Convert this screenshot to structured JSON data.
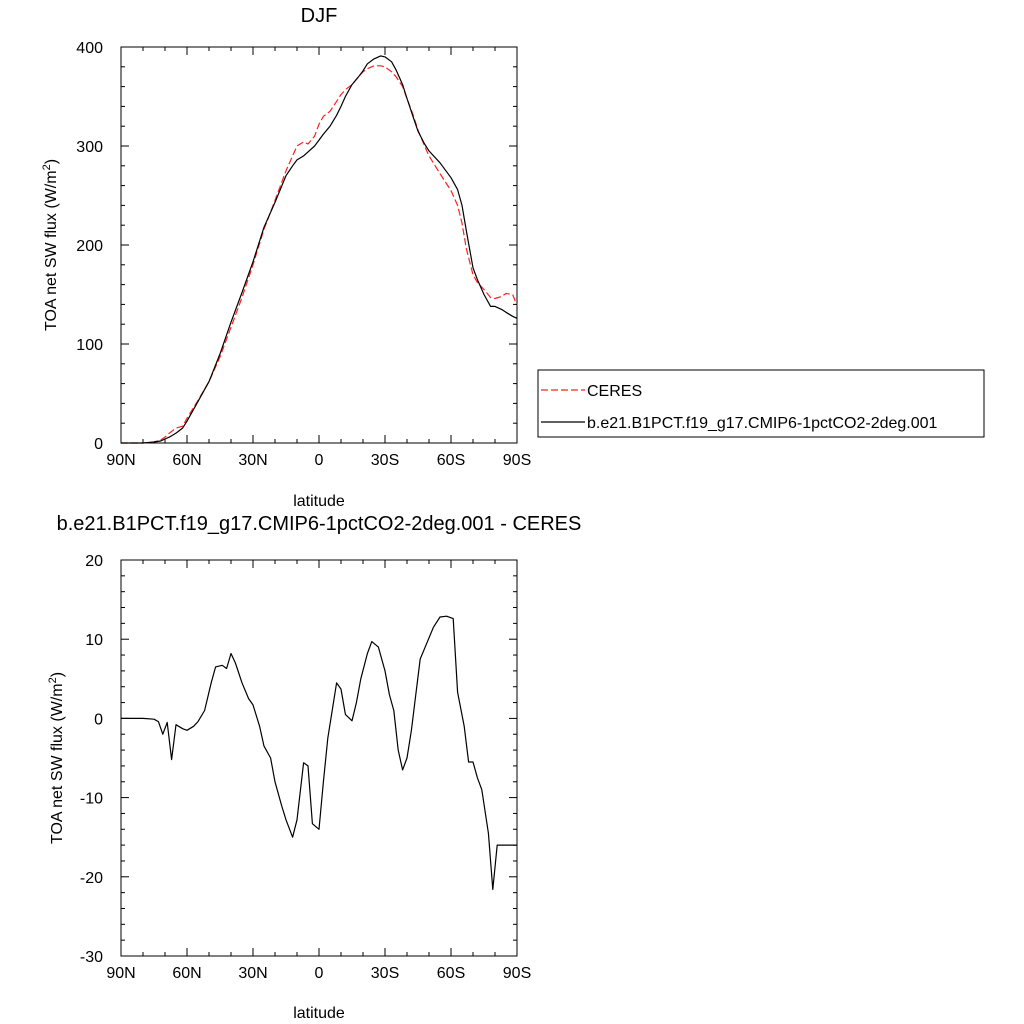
{
  "chart_data": [
    {
      "type": "line",
      "title": "DJF",
      "xlabel": "latitude",
      "ylabel": "TOA net SW flux (W/m",
      "ylabel_superscript": "2",
      "ylabel_suffix": ")",
      "xlim": [
        90,
        -90
      ],
      "ylim": [
        0,
        400
      ],
      "x_ticks": [
        {
          "value": 90,
          "label": "90N"
        },
        {
          "value": 60,
          "label": "60N"
        },
        {
          "value": 30,
          "label": "30N"
        },
        {
          "value": 0,
          "label": "0"
        },
        {
          "value": -30,
          "label": "30S"
        },
        {
          "value": -60,
          "label": "60S"
        },
        {
          "value": -90,
          "label": "90S"
        }
      ],
      "y_ticks": [
        {
          "value": 0,
          "label": "0"
        },
        {
          "value": 100,
          "label": "100"
        },
        {
          "value": 200,
          "label": "200"
        },
        {
          "value": 300,
          "label": "300"
        },
        {
          "value": 400,
          "label": "400"
        }
      ],
      "grid": false,
      "legend_position": "outside-right",
      "series": [
        {
          "name": "CERES",
          "color": "#ff2020",
          "style": "dashed",
          "x": [
            90,
            85,
            80,
            75,
            72,
            70,
            68,
            65,
            62,
            60,
            55,
            50,
            45,
            40,
            35,
            30,
            25,
            20,
            15,
            12,
            10,
            7,
            5,
            2,
            0,
            -2,
            -5,
            -8,
            -10,
            -12,
            -15,
            -18,
            -20,
            -22,
            -25,
            -28,
            -30,
            -33,
            -35,
            -38,
            -40,
            -43,
            -45,
            -48,
            -50,
            -55,
            -60,
            -63,
            -65,
            -67,
            -70,
            -72,
            -75,
            -78,
            -80,
            -83,
            -85,
            -88,
            -90
          ],
          "y": [
            0,
            0,
            0,
            1,
            3,
            6,
            10,
            15,
            17,
            25,
            43,
            62,
            87,
            117,
            147,
            180,
            216,
            245,
            275,
            290,
            300,
            304,
            302,
            310,
            322,
            330,
            335,
            345,
            352,
            357,
            362,
            370,
            375,
            378,
            381,
            381,
            380,
            375,
            370,
            360,
            348,
            330,
            316,
            300,
            290,
            272,
            255,
            240,
            222,
            196,
            170,
            162,
            155,
            147,
            146,
            148,
            151,
            150,
            139
          ]
        },
        {
          "name": "b.e21.B1PCT.f19_g17.CMIP6-1pctCO2-2deg.001",
          "color": "#000000",
          "style": "solid",
          "x": [
            90,
            85,
            80,
            75,
            72,
            70,
            68,
            65,
            62,
            60,
            55,
            50,
            45,
            40,
            35,
            30,
            25,
            20,
            15,
            12,
            10,
            7,
            5,
            2,
            0,
            -2,
            -5,
            -8,
            -10,
            -12,
            -15,
            -18,
            -20,
            -22,
            -25,
            -28,
            -30,
            -33,
            -35,
            -38,
            -40,
            -43,
            -45,
            -48,
            -50,
            -55,
            -60,
            -63,
            -65,
            -67,
            -70,
            -72,
            -75,
            -78,
            -80,
            -83,
            -85,
            -88,
            -90
          ],
          "y": [
            0,
            0,
            0,
            1,
            2,
            4,
            6,
            10,
            15,
            22,
            42,
            62,
            90,
            122,
            152,
            183,
            218,
            243,
            270,
            280,
            286,
            290,
            294,
            300,
            306,
            312,
            320,
            331,
            340,
            350,
            362,
            370,
            376,
            383,
            388,
            391,
            390,
            385,
            377,
            362,
            348,
            328,
            315,
            302,
            295,
            283,
            268,
            256,
            240,
            214,
            177,
            165,
            150,
            138,
            138,
            135,
            132,
            128,
            126
          ]
        }
      ],
      "legend": [
        {
          "name": "CERES",
          "color": "#ff2020",
          "style": "dashed"
        },
        {
          "name": "b.e21.B1PCT.f19_g17.CMIP6-1pctCO2-2deg.001",
          "color": "#000000",
          "style": "solid"
        }
      ]
    },
    {
      "type": "line",
      "title": "b.e21.B1PCT.f19_g17.CMIP6-1pctCO2-2deg.001 - CERES",
      "xlabel": "latitude",
      "ylabel": "TOA net SW flux (W/m",
      "ylabel_superscript": "2",
      "ylabel_suffix": ")",
      "xlim": [
        90,
        -90
      ],
      "ylim": [
        -30,
        20
      ],
      "x_ticks": [
        {
          "value": 90,
          "label": "90N"
        },
        {
          "value": 60,
          "label": "60N"
        },
        {
          "value": 30,
          "label": "30N"
        },
        {
          "value": 0,
          "label": "0"
        },
        {
          "value": -30,
          "label": "30S"
        },
        {
          "value": -60,
          "label": "60S"
        },
        {
          "value": -90,
          "label": "90S"
        }
      ],
      "y_ticks": [
        {
          "value": -30,
          "label": "-30"
        },
        {
          "value": -20,
          "label": "-20"
        },
        {
          "value": -10,
          "label": "-10"
        },
        {
          "value": 0,
          "label": "0"
        },
        {
          "value": 10,
          "label": "10"
        },
        {
          "value": 20,
          "label": "20"
        }
      ],
      "grid": false,
      "series": [
        {
          "color": "#000000",
          "style": "solid",
          "x": [
            90,
            85,
            80,
            75,
            73,
            71,
            69,
            67,
            65,
            62,
            60,
            57,
            55,
            52,
            49,
            47,
            44,
            42,
            40,
            38,
            35,
            32,
            30,
            27,
            25,
            22,
            20,
            17,
            15,
            12,
            10,
            7,
            5,
            3,
            0,
            -2,
            -4,
            -6,
            -8,
            -10,
            -12,
            -15,
            -17,
            -19,
            -22,
            -24,
            -27,
            -30,
            -32,
            -34,
            -36,
            -38,
            -40,
            -42,
            -44,
            -46,
            -49,
            -52,
            -55,
            -58,
            -61,
            -63,
            -66,
            -68,
            -70,
            -72,
            -74,
            -77,
            -79,
            -81,
            -84,
            -86,
            -88,
            -90
          ],
          "y": [
            0,
            0,
            0,
            -0.1,
            -0.4,
            -2.0,
            -0.5,
            -5.2,
            -0.8,
            -1.3,
            -1.5,
            -1.0,
            -0.4,
            1.0,
            4.5,
            6.5,
            6.7,
            6.3,
            8.2,
            7.0,
            4.5,
            2.5,
            1.7,
            -1.0,
            -3.5,
            -5.0,
            -8.0,
            -11.0,
            -12.8,
            -15.0,
            -12.8,
            -5.6,
            -6.0,
            -13.3,
            -14.0,
            -8.0,
            -2.5,
            1.0,
            4.5,
            3.7,
            0.5,
            -0.3,
            2.0,
            5.0,
            8.2,
            9.7,
            9.0,
            6.0,
            3.0,
            1.0,
            -4.0,
            -6.5,
            -5.0,
            -1.5,
            3.0,
            7.5,
            9.5,
            11.5,
            12.8,
            12.9,
            12.6,
            3.3,
            -1.0,
            -5.5,
            -5.5,
            -7.5,
            -9.0,
            -14.5,
            -21.6,
            -16.0,
            -16.0,
            -16.0,
            -16.0,
            -16.0
          ]
        }
      ]
    }
  ]
}
